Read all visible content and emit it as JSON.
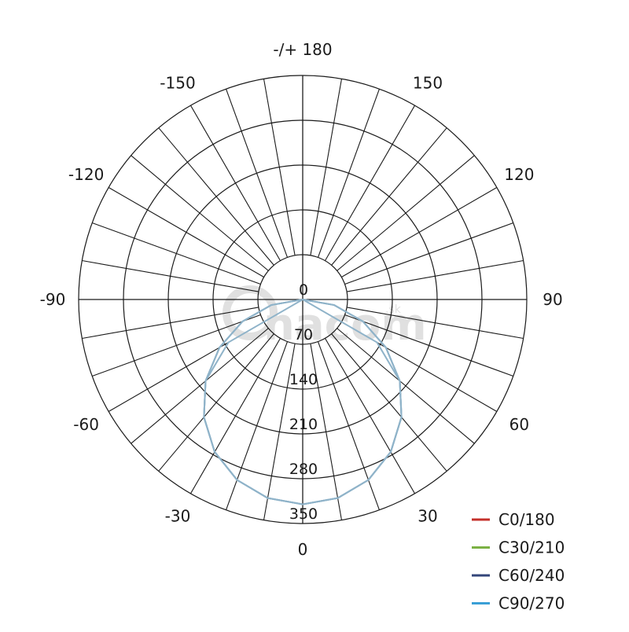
{
  "chart_data": {
    "type": "line",
    "subtype": "polar luminous intensity distribution",
    "angle_labels": [
      "-/+ 180",
      "150",
      "120",
      "90",
      "60",
      "30",
      "0",
      "-30",
      "-60",
      "-90",
      "-120",
      "-150"
    ],
    "angle_values": [
      180,
      150,
      120,
      90,
      60,
      30,
      0,
      -30,
      -60,
      -90,
      -120,
      -150
    ],
    "radial_ticks": [
      0,
      70,
      140,
      210,
      280,
      350
    ],
    "radial_range": [
      0,
      350
    ],
    "spoke_step_deg": 10,
    "grid": true,
    "legend_placement": "bottom-right",
    "gamma": [
      0,
      10,
      20,
      30,
      40,
      50,
      60,
      70,
      80,
      90
    ],
    "series": [
      {
        "name": "C0/180",
        "color": "#c4302b",
        "values": [
          320,
          315,
          300,
          275,
          240,
          198,
          150,
          100,
          50,
          0
        ]
      },
      {
        "name": "C30/210",
        "color": "#7bb144",
        "values": [
          320,
          315,
          300,
          275,
          240,
          198,
          150,
          100,
          50,
          0
        ]
      },
      {
        "name": "C60/240",
        "color": "#33457a",
        "values": [
          320,
          315,
          300,
          275,
          240,
          198,
          134,
          0,
          0,
          0
        ]
      },
      {
        "name": "C90/270",
        "color": "#3a9fd6",
        "values": [
          320,
          315,
          300,
          275,
          240,
          198,
          150,
          100,
          50,
          0
        ]
      }
    ],
    "curve_render_color": "#8fb3c9",
    "watermark": "nacom.sk"
  }
}
